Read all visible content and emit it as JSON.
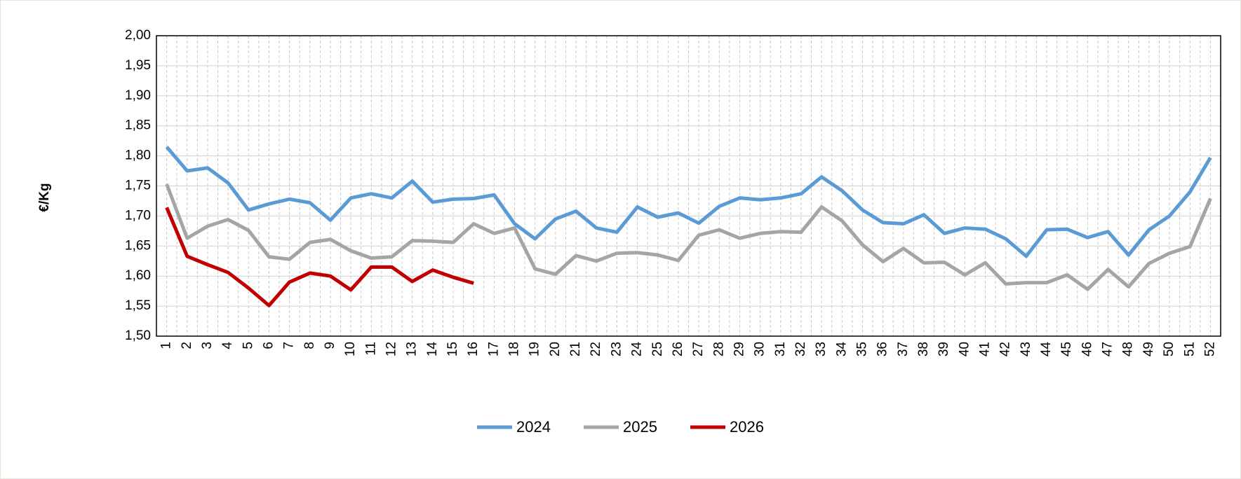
{
  "chart_data": {
    "type": "line",
    "y_label": "€/Kg",
    "categories": [
      "1",
      "2",
      "3",
      "4",
      "5",
      "6",
      "7",
      "8",
      "9",
      "10",
      "11",
      "12",
      "13",
      "14",
      "15",
      "16",
      "17",
      "18",
      "19",
      "20",
      "21",
      "22",
      "23",
      "24",
      "25",
      "26",
      "27",
      "28",
      "29",
      "30",
      "31",
      "32",
      "33",
      "34",
      "35",
      "36",
      "37",
      "38",
      "39",
      "40",
      "41",
      "42",
      "43",
      "44",
      "45",
      "46",
      "47",
      "48",
      "49",
      "50",
      "51",
      "52"
    ],
    "series": [
      {
        "name": "2024",
        "color": "#5b9bd5",
        "values": [
          1.815,
          1.775,
          1.78,
          1.755,
          1.71,
          1.72,
          1.728,
          1.722,
          1.693,
          1.73,
          1.737,
          1.73,
          1.758,
          1.723,
          1.728,
          1.729,
          1.735,
          1.687,
          1.662,
          1.695,
          1.708,
          1.68,
          1.673,
          1.715,
          1.698,
          1.705,
          1.688,
          1.716,
          1.73,
          1.727,
          1.73,
          1.737,
          1.765,
          1.742,
          1.71,
          1.689,
          1.687,
          1.702,
          1.671,
          1.68,
          1.678,
          1.662,
          1.633,
          1.677,
          1.678,
          1.664,
          1.674,
          1.635,
          1.677,
          1.7,
          1.74,
          1.797
        ]
      },
      {
        "name": "2025",
        "color": "#a5a5a5",
        "values": [
          1.753,
          1.663,
          1.683,
          1.694,
          1.676,
          1.632,
          1.628,
          1.656,
          1.661,
          1.642,
          1.63,
          1.632,
          1.659,
          1.658,
          1.656,
          1.687,
          1.671,
          1.68,
          1.612,
          1.603,
          1.634,
          1.625,
          1.638,
          1.639,
          1.635,
          1.626,
          1.668,
          1.677,
          1.663,
          1.671,
          1.674,
          1.673,
          1.715,
          1.692,
          1.652,
          1.624,
          1.646,
          1.622,
          1.623,
          1.602,
          1.622,
          1.587,
          1.589,
          1.589,
          1.602,
          1.578,
          1.611,
          1.582,
          1.621,
          1.638,
          1.649,
          1.729
        ]
      },
      {
        "name": "2026",
        "color": "#c00000",
        "values": [
          1.714,
          1.633,
          1.619,
          1.606,
          1.58,
          1.551,
          1.59,
          1.605,
          1.6,
          1.577,
          1.615,
          1.615,
          1.591,
          1.61,
          1.598,
          1.588,
          null,
          null,
          null,
          null,
          null,
          null,
          null,
          null,
          null,
          null,
          null,
          null,
          null,
          null,
          null,
          null,
          null,
          null,
          null,
          null,
          null,
          null,
          null,
          null,
          null,
          null,
          null,
          null,
          null,
          null,
          null,
          null,
          null,
          null,
          null,
          null
        ]
      }
    ],
    "ylim": [
      1.5,
      2.0
    ],
    "yticks": [
      {
        "value": 1.5,
        "label": "1,50"
      },
      {
        "value": 1.55,
        "label": "1,55"
      },
      {
        "value": 1.6,
        "label": "1,60"
      },
      {
        "value": 1.65,
        "label": "1,65"
      },
      {
        "value": 1.7,
        "label": "1,70"
      },
      {
        "value": 1.75,
        "label": "1,75"
      },
      {
        "value": 1.8,
        "label": "1,80"
      },
      {
        "value": 1.85,
        "label": "1,85"
      },
      {
        "value": 1.9,
        "label": "1,90"
      },
      {
        "value": 1.95,
        "label": "1,95"
      },
      {
        "value": 2.0,
        "label": "2,00"
      }
    ],
    "grid": true,
    "legend": "bottom"
  }
}
